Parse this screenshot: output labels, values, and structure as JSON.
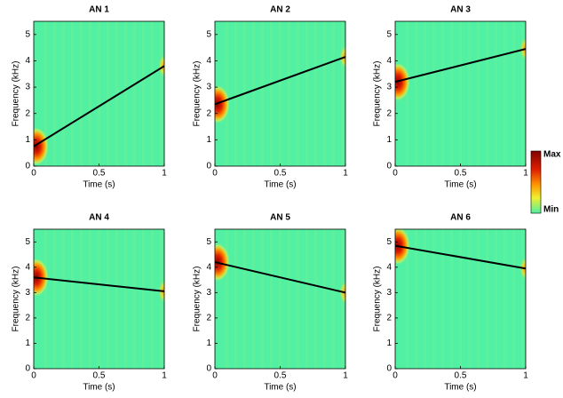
{
  "chart_data": [
    {
      "type": "line",
      "title": "AN 1",
      "xlabel": "Time (s)",
      "ylabel": "Frequency (kHz)",
      "x": [
        0,
        1
      ],
      "values": [
        0.75,
        3.8
      ],
      "color": "#000000",
      "xlim": [
        0,
        1
      ],
      "ylim": [
        0,
        5.5
      ],
      "xticks": [
        0,
        0.5,
        1
      ],
      "yticks": [
        0,
        1,
        2,
        3,
        4,
        5
      ]
    },
    {
      "type": "line",
      "title": "AN 2",
      "xlabel": "Time (s)",
      "ylabel": "Frequency (kHz)",
      "x": [
        0,
        1
      ],
      "values": [
        2.35,
        4.15
      ],
      "color": "#000000",
      "xlim": [
        0,
        1
      ],
      "ylim": [
        0,
        5.5
      ],
      "xticks": [
        0,
        0.5,
        1
      ],
      "yticks": [
        0,
        1,
        2,
        3,
        4,
        5
      ]
    },
    {
      "type": "line",
      "title": "AN 3",
      "xlabel": "Time (s)",
      "ylabel": "Frequency (kHz)",
      "x": [
        0,
        1
      ],
      "values": [
        3.2,
        4.45
      ],
      "color": "#000000",
      "xlim": [
        0,
        1
      ],
      "ylim": [
        0,
        5.5
      ],
      "xticks": [
        0,
        0.5,
        1
      ],
      "yticks": [
        0,
        1,
        2,
        3,
        4,
        5
      ]
    },
    {
      "type": "line",
      "title": "AN 4",
      "xlabel": "Time (s)",
      "ylabel": "Frequency (kHz)",
      "x": [
        0,
        1
      ],
      "values": [
        3.6,
        3.05
      ],
      "color": "#000000",
      "xlim": [
        0,
        1
      ],
      "ylim": [
        0,
        5.5
      ],
      "xticks": [
        0,
        0.5,
        1
      ],
      "yticks": [
        0,
        1,
        2,
        3,
        4,
        5
      ]
    },
    {
      "type": "line",
      "title": "AN 5",
      "xlabel": "Time (s)",
      "ylabel": "Frequency (kHz)",
      "x": [
        0,
        1
      ],
      "values": [
        4.2,
        3.0
      ],
      "color": "#000000",
      "xlim": [
        0,
        1
      ],
      "ylim": [
        0,
        5.5
      ],
      "xticks": [
        0,
        0.5,
        1
      ],
      "yticks": [
        0,
        1,
        2,
        3,
        4,
        5
      ]
    },
    {
      "type": "line",
      "title": "AN 6",
      "xlabel": "Time (s)",
      "ylabel": "Frequency (kHz)",
      "x": [
        0,
        1
      ],
      "values": [
        4.85,
        3.95
      ],
      "color": "#000000",
      "xlim": [
        0,
        1
      ],
      "ylim": [
        0,
        5.5
      ],
      "xticks": [
        0,
        0.5,
        1
      ],
      "yticks": [
        0,
        1,
        2,
        3,
        4,
        5
      ]
    }
  ],
  "colorbar": {
    "max_label": "Max",
    "min_label": "Min"
  }
}
